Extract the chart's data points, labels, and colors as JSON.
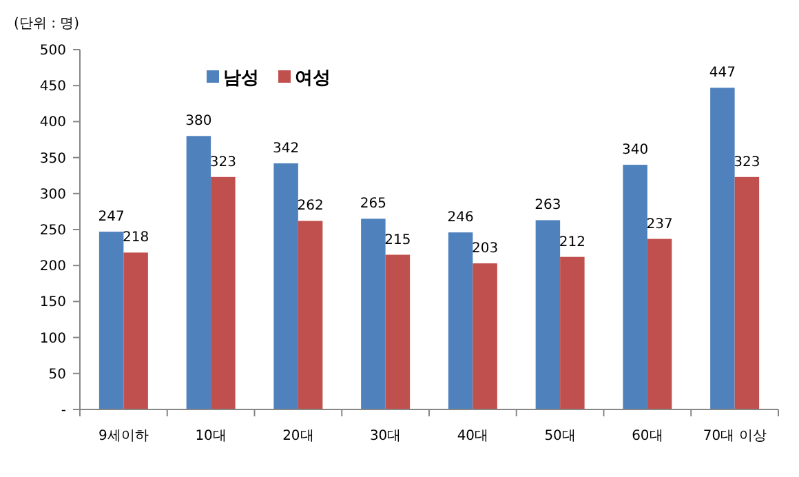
{
  "chart_data": {
    "type": "bar",
    "ylabel": "(단위 : 명)",
    "categories": [
      "9세이하",
      "10대",
      "20대",
      "30대",
      "40대",
      "50대",
      "60대",
      "70대 이상"
    ],
    "series": [
      {
        "name": "남성",
        "color": "#4f81bd",
        "values": [
          247,
          380,
          342,
          265,
          246,
          263,
          340,
          447
        ]
      },
      {
        "name": "여성",
        "color": "#c0504d",
        "values": [
          218,
          323,
          262,
          215,
          203,
          212,
          237,
          323
        ]
      }
    ],
    "ylim": [
      0,
      500
    ],
    "yticks": [
      {
        "value": 0,
        "label": "-"
      },
      50,
      100,
      150,
      200,
      250,
      300,
      350,
      400,
      450,
      500
    ],
    "data_labels": true,
    "legend": "top left",
    "grid": false
  }
}
